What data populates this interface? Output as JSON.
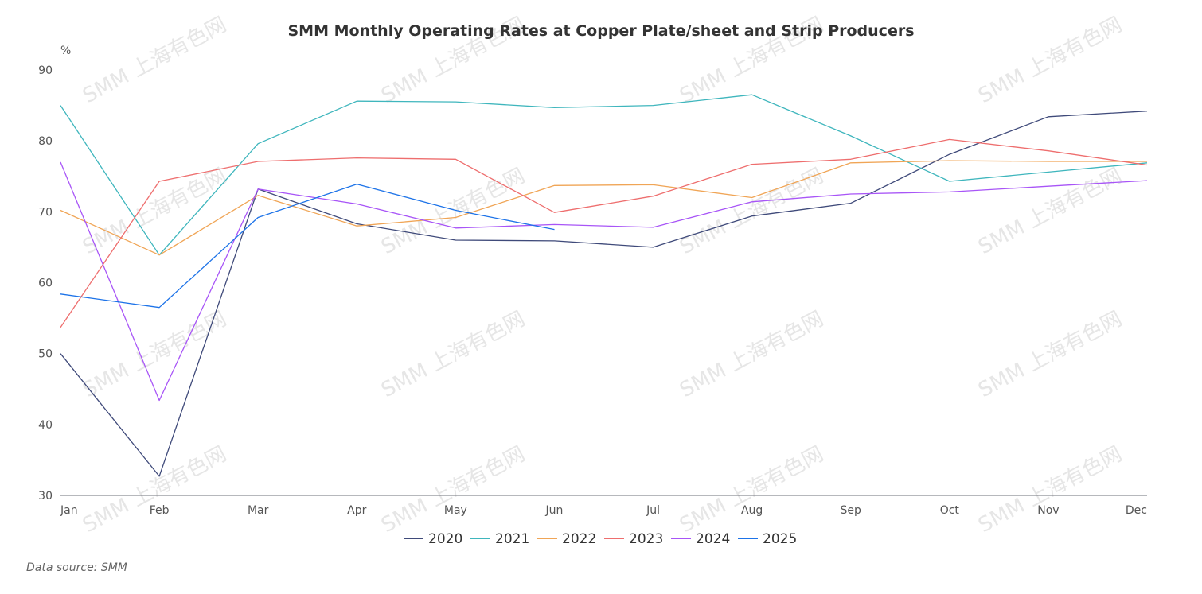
{
  "watermark_text": "SMM 上海有色网",
  "source_text": "Data source:  SMM",
  "chart_data": {
    "type": "line",
    "title": "SMM Monthly Operating Rates at Copper Plate/sheet and Strip Producers",
    "ylabel": "%",
    "xlabel": "",
    "ylim": [
      30,
      90
    ],
    "yticks": [
      30,
      40,
      50,
      60,
      70,
      80,
      90
    ],
    "grid": false,
    "legend_position": "bottom-center",
    "categories": [
      "Jan",
      "Feb",
      "Mar",
      "Apr",
      "May",
      "Jun",
      "Jul",
      "Aug",
      "Sep",
      "Oct",
      "Nov",
      "Dec"
    ],
    "series": [
      {
        "name": "2020",
        "color": "#3f4a7a",
        "values": [
          50.0,
          32.7,
          73.2,
          68.3,
          66.0,
          65.9,
          65.0,
          69.4,
          71.2,
          78.1,
          83.4,
          84.2
        ]
      },
      {
        "name": "2021",
        "color": "#3fb6bd",
        "values": [
          85.0,
          63.9,
          79.6,
          85.6,
          85.5,
          84.7,
          85.0,
          86.5,
          80.7,
          74.3,
          75.6,
          76.9
        ]
      },
      {
        "name": "2022",
        "color": "#f0a556",
        "values": [
          70.2,
          63.9,
          72.3,
          68.0,
          69.2,
          73.7,
          73.8,
          72.0,
          76.9,
          77.2,
          77.1,
          77.1
        ]
      },
      {
        "name": "2023",
        "color": "#ee6e6e",
        "values": [
          53.7,
          74.3,
          77.1,
          77.6,
          77.4,
          69.9,
          72.2,
          76.7,
          77.4,
          80.2,
          78.6,
          76.6
        ]
      },
      {
        "name": "2024",
        "color": "#a855f7",
        "values": [
          77.0,
          43.4,
          73.2,
          71.1,
          67.7,
          68.2,
          67.8,
          71.4,
          72.5,
          72.8,
          73.6,
          74.4
        ]
      },
      {
        "name": "2025",
        "color": "#1d73e8",
        "values": [
          58.4,
          56.5,
          69.2,
          73.9,
          70.2,
          67.5,
          null,
          null,
          null,
          null,
          null,
          null
        ]
      }
    ]
  }
}
